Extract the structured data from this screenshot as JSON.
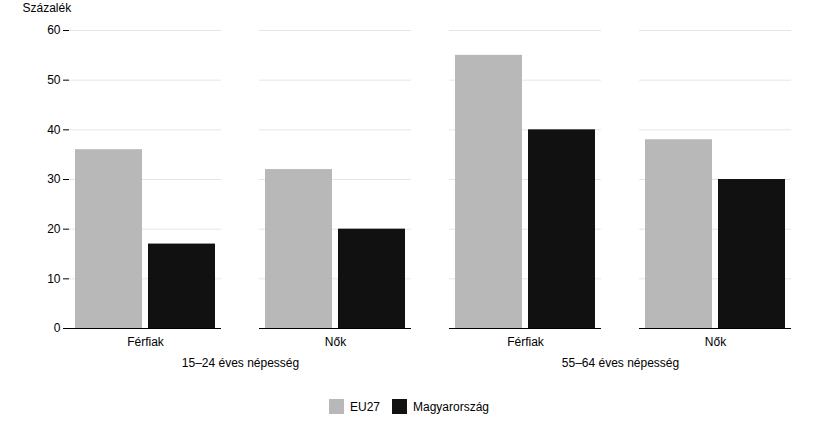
{
  "chart_data": {
    "type": "bar",
    "ylabel": "Százalék",
    "categories": [
      "Férfiak",
      "Nők",
      "Férfiak",
      "Nők"
    ],
    "category_groups": [
      "15–24 éves népesség",
      "15–24 éves népesség",
      "55–64 éves népesség",
      "55–64 éves népesség"
    ],
    "series": [
      {
        "name": "EU27",
        "color": "#b8b8b8",
        "values": [
          36,
          32,
          55,
          38
        ]
      },
      {
        "name": "Magyarország",
        "color": "#111111",
        "values": [
          17,
          20,
          40,
          30
        ]
      }
    ],
    "ylim": [
      0,
      60
    ],
    "yticks": [
      0,
      10,
      20,
      30,
      40,
      50,
      60
    ],
    "grid": true,
    "legend": "bottom"
  }
}
